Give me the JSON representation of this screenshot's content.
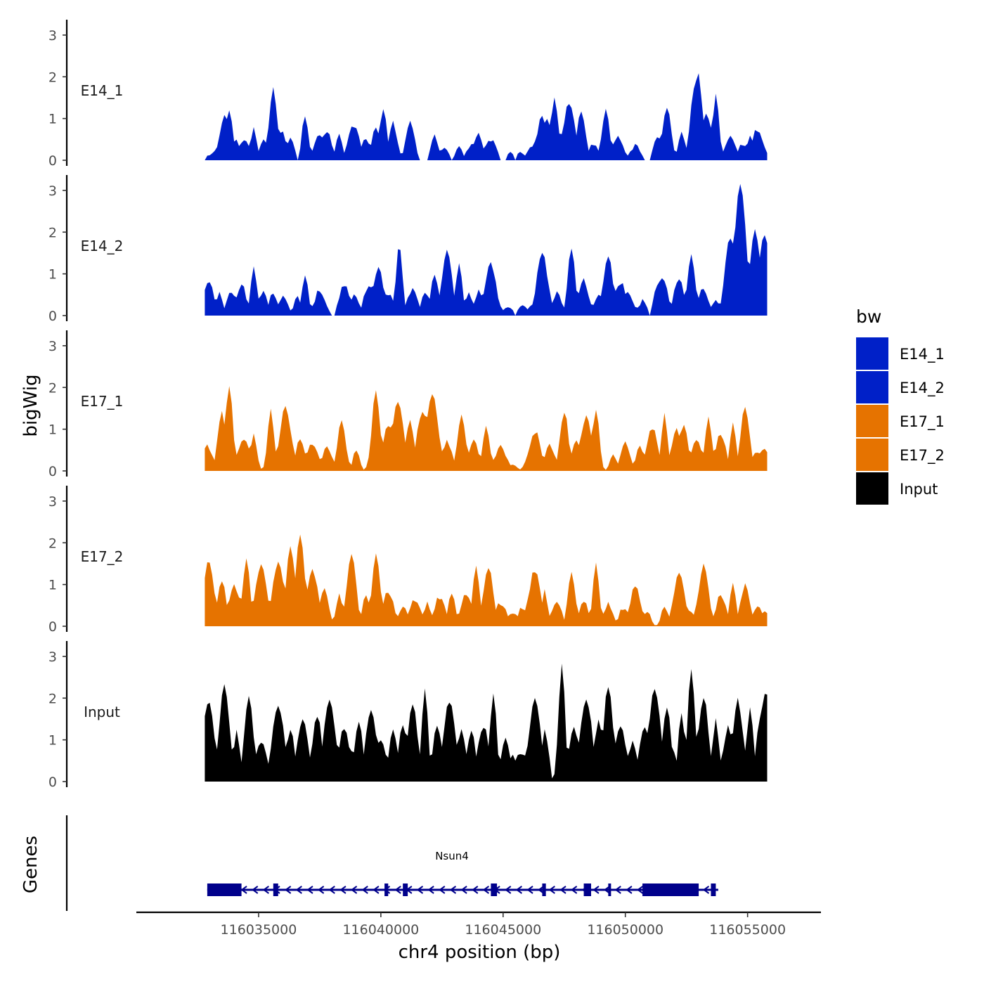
{
  "chart_data": {
    "type": "area",
    "chromosome": "chr4",
    "xlabel": "chr4 position (bp)",
    "ylabel": "bigWig",
    "genes_axis_label": "Genes",
    "xlim": [
      116030000,
      116058000
    ],
    "x_ticks": [
      116035000,
      116040000,
      116045000,
      116050000,
      116055000
    ],
    "x_tick_labels": [
      "116035000",
      "116040000",
      "116045000",
      "116050000",
      "116055000"
    ],
    "ylim": [
      0,
      3.2
    ],
    "y_ticks": [
      0,
      1,
      2,
      3
    ],
    "y_tick_labels": [
      "0",
      "1",
      "2",
      "3"
    ],
    "data_x_range": [
      116032800,
      116055800
    ],
    "bin_width_bp": 100,
    "legend": {
      "title": "bw",
      "position": "right",
      "entries": [
        {
          "name": "E14_1",
          "color": "#0020c8"
        },
        {
          "name": "E14_2",
          "color": "#0020c8"
        },
        {
          "name": "E17_1",
          "color": "#e67300"
        },
        {
          "name": "E17_2",
          "color": "#e67300"
        },
        {
          "name": "Input",
          "color": "#000000"
        }
      ]
    },
    "series": [
      {
        "name": "E14_1",
        "color": "#0020c8",
        "peaks": [
          [
            116033000,
            0.12
          ],
          [
            116033300,
            0.25
          ],
          [
            116033600,
            1.05
          ],
          [
            116033800,
            1.2
          ],
          [
            116034100,
            0.45
          ],
          [
            116034400,
            0.5
          ],
          [
            116034800,
            0.75
          ],
          [
            116035200,
            0.55
          ],
          [
            116035600,
            1.7
          ],
          [
            116035950,
            0.75
          ],
          [
            116036300,
            0.5
          ],
          [
            116036900,
            1.05
          ],
          [
            116037500,
            0.6
          ],
          [
            116037800,
            0.65
          ],
          [
            116038300,
            0.6
          ],
          [
            116038900,
            0.85
          ],
          [
            116039400,
            0.55
          ],
          [
            116039800,
            0.8
          ],
          [
            116040100,
            1.2
          ],
          [
            116040500,
            0.9
          ],
          [
            116041200,
            0.95
          ],
          [
            116042200,
            0.6
          ],
          [
            116042600,
            0.3
          ],
          [
            116043200,
            0.35
          ],
          [
            116043700,
            0.4
          ],
          [
            116044000,
            0.6
          ],
          [
            116044500,
            0.5
          ],
          [
            116045300,
            0.2
          ],
          [
            116045700,
            0.2
          ],
          [
            116046200,
            0.35
          ],
          [
            116046600,
            1.05
          ],
          [
            116046800,
            1.0
          ],
          [
            116047100,
            1.5
          ],
          [
            116047700,
            1.35
          ],
          [
            116048200,
            1.2
          ],
          [
            116048700,
            0.35
          ],
          [
            116049200,
            1.25
          ],
          [
            116049700,
            0.6
          ],
          [
            116050400,
            0.35
          ],
          [
            116051300,
            0.6
          ],
          [
            116051700,
            1.3
          ],
          [
            116052300,
            0.7
          ],
          [
            116052900,
            1.95
          ],
          [
            116053000,
            2.05
          ],
          [
            116053300,
            1.1
          ],
          [
            116053700,
            1.55
          ],
          [
            116054300,
            0.55
          ],
          [
            116054800,
            0.4
          ],
          [
            116055100,
            0.55
          ],
          [
            116055400,
            0.75
          ]
        ]
      },
      {
        "name": "E14_2",
        "color": "#0020c8",
        "peaks": [
          [
            116032950,
            0.8
          ],
          [
            116033400,
            0.6
          ],
          [
            116033900,
            0.6
          ],
          [
            116034300,
            0.75
          ],
          [
            116034800,
            1.2
          ],
          [
            116035200,
            0.55
          ],
          [
            116035600,
            0.55
          ],
          [
            116036000,
            0.5
          ],
          [
            116036600,
            0.45
          ],
          [
            116036900,
            0.95
          ],
          [
            116037500,
            0.6
          ],
          [
            116038500,
            0.75
          ],
          [
            116038900,
            0.45
          ],
          [
            116039500,
            0.75
          ],
          [
            116039900,
            1.15
          ],
          [
            116040300,
            0.5
          ],
          [
            116040750,
            1.7
          ],
          [
            116041300,
            0.65
          ],
          [
            116041800,
            0.6
          ],
          [
            116042200,
            1.0
          ],
          [
            116042700,
            1.55
          ],
          [
            116043200,
            1.3
          ],
          [
            116043600,
            0.55
          ],
          [
            116044000,
            0.6
          ],
          [
            116044500,
            1.25
          ],
          [
            116045200,
            0.2
          ],
          [
            116045800,
            0.25
          ],
          [
            116046200,
            0.25
          ],
          [
            116046600,
            1.5
          ],
          [
            116047200,
            0.55
          ],
          [
            116047800,
            1.65
          ],
          [
            116048300,
            0.85
          ],
          [
            116048900,
            0.55
          ],
          [
            116049300,
            1.45
          ],
          [
            116049800,
            0.8
          ],
          [
            116050100,
            0.55
          ],
          [
            116050700,
            0.35
          ],
          [
            116051300,
            0.7
          ],
          [
            116051500,
            0.95
          ],
          [
            116052200,
            0.85
          ],
          [
            116052700,
            1.5
          ],
          [
            116053200,
            0.65
          ],
          [
            116053700,
            0.4
          ],
          [
            116054300,
            1.9
          ],
          [
            116054700,
            3.1
          ],
          [
            116055000,
            1.35
          ],
          [
            116055300,
            2.1
          ],
          [
            116055600,
            1.6
          ],
          [
            116055700,
            1.95
          ]
        ]
      },
      {
        "name": "E17_1",
        "color": "#e67300",
        "peaks": [
          [
            116032900,
            0.6
          ],
          [
            116033500,
            1.4
          ],
          [
            116033800,
            2.05
          ],
          [
            116034400,
            0.75
          ],
          [
            116034800,
            0.85
          ],
          [
            116035500,
            1.45
          ],
          [
            116036100,
            1.55
          ],
          [
            116036700,
            0.75
          ],
          [
            116037200,
            0.65
          ],
          [
            116037800,
            0.55
          ],
          [
            116038400,
            1.2
          ],
          [
            116039000,
            0.5
          ],
          [
            116039800,
            1.9
          ],
          [
            116040300,
            1.1
          ],
          [
            116040700,
            1.65
          ],
          [
            116041200,
            1.2
          ],
          [
            116041700,
            1.45
          ],
          [
            116042100,
            1.85
          ],
          [
            116042700,
            0.7
          ],
          [
            116043300,
            1.35
          ],
          [
            116043800,
            0.7
          ],
          [
            116044300,
            1.05
          ],
          [
            116044900,
            0.6
          ],
          [
            116045400,
            0.15
          ],
          [
            116046300,
            0.95
          ],
          [
            116046900,
            0.6
          ],
          [
            116047500,
            1.45
          ],
          [
            116048000,
            0.7
          ],
          [
            116048400,
            1.3
          ],
          [
            116048800,
            1.5
          ],
          [
            116049500,
            0.4
          ],
          [
            116050000,
            0.7
          ],
          [
            116050600,
            0.65
          ],
          [
            116051100,
            1.05
          ],
          [
            116051600,
            1.35
          ],
          [
            116052100,
            1.0
          ],
          [
            116052400,
            1.1
          ],
          [
            116052900,
            0.75
          ],
          [
            116053400,
            1.25
          ],
          [
            116053900,
            0.9
          ],
          [
            116054400,
            1.15
          ],
          [
            116054900,
            1.55
          ],
          [
            116055400,
            0.45
          ],
          [
            116055700,
            0.5
          ]
        ]
      },
      {
        "name": "E17_2",
        "color": "#e67300",
        "peaks": [
          [
            116032950,
            1.55
          ],
          [
            116033500,
            1.1
          ],
          [
            116034000,
            1.0
          ],
          [
            116034500,
            1.6
          ],
          [
            116035100,
            1.45
          ],
          [
            116035800,
            1.5
          ],
          [
            116036300,
            1.95
          ],
          [
            116036700,
            2.15
          ],
          [
            116037200,
            1.35
          ],
          [
            116037700,
            0.9
          ],
          [
            116038300,
            0.8
          ],
          [
            116038800,
            1.75
          ],
          [
            116039400,
            0.75
          ],
          [
            116039800,
            1.7
          ],
          [
            116040300,
            0.85
          ],
          [
            116040900,
            0.45
          ],
          [
            116041400,
            0.65
          ],
          [
            116041900,
            0.55
          ],
          [
            116042400,
            0.7
          ],
          [
            116042900,
            0.75
          ],
          [
            116043500,
            0.75
          ],
          [
            116043900,
            1.5
          ],
          [
            116044400,
            1.45
          ],
          [
            116044900,
            0.55
          ],
          [
            116045400,
            0.35
          ],
          [
            116045800,
            0.45
          ],
          [
            116046300,
            1.35
          ],
          [
            116046700,
            0.85
          ],
          [
            116047200,
            0.6
          ],
          [
            116047800,
            1.3
          ],
          [
            116048300,
            0.6
          ],
          [
            116048800,
            1.5
          ],
          [
            116049300,
            0.55
          ],
          [
            116049900,
            0.45
          ],
          [
            116050400,
            1.0
          ],
          [
            116050900,
            0.4
          ],
          [
            116051600,
            0.45
          ],
          [
            116052200,
            1.3
          ],
          [
            116052600,
            0.4
          ],
          [
            116053200,
            1.45
          ],
          [
            116053900,
            0.75
          ],
          [
            116054400,
            1.0
          ],
          [
            116054900,
            1.0
          ],
          [
            116055400,
            0.45
          ],
          [
            116055700,
            0.35
          ]
        ]
      },
      {
        "name": "Input",
        "color": "#000000",
        "peaks": [
          [
            116032950,
            1.95
          ],
          [
            116033600,
            2.3
          ],
          [
            116034100,
            1.2
          ],
          [
            116034600,
            2.05
          ],
          [
            116035100,
            0.95
          ],
          [
            116035800,
            1.85
          ],
          [
            116036300,
            1.25
          ],
          [
            116036800,
            1.5
          ],
          [
            116037400,
            1.6
          ],
          [
            116037900,
            1.95
          ],
          [
            116038500,
            1.3
          ],
          [
            116039100,
            1.45
          ],
          [
            116039600,
            1.7
          ],
          [
            116040000,
            1.0
          ],
          [
            116040500,
            1.3
          ],
          [
            116040900,
            1.35
          ],
          [
            116041300,
            1.9
          ],
          [
            116041800,
            2.2
          ],
          [
            116042300,
            1.3
          ],
          [
            116042800,
            1.95
          ],
          [
            116043300,
            1.2
          ],
          [
            116043700,
            1.2
          ],
          [
            116044200,
            1.3
          ],
          [
            116044600,
            2.15
          ],
          [
            116045100,
            1.0
          ],
          [
            116045400,
            0.6
          ],
          [
            116045900,
            0.6
          ],
          [
            116046300,
            1.95
          ],
          [
            116046700,
            1.25
          ],
          [
            116047400,
            2.85
          ],
          [
            116047900,
            1.35
          ],
          [
            116048400,
            2.0
          ],
          [
            116048900,
            1.45
          ],
          [
            116049300,
            2.3
          ],
          [
            116049800,
            1.3
          ],
          [
            116050300,
            1.0
          ],
          [
            116050800,
            1.3
          ],
          [
            116051200,
            2.2
          ],
          [
            116051700,
            1.8
          ],
          [
            116052300,
            1.7
          ],
          [
            116052700,
            2.7
          ],
          [
            116053200,
            2.05
          ],
          [
            116053700,
            1.5
          ],
          [
            116054200,
            1.3
          ],
          [
            116054600,
            1.95
          ],
          [
            116055100,
            1.8
          ],
          [
            116055500,
            1.45
          ],
          [
            116055750,
            2.15
          ]
        ]
      }
    ],
    "gene": {
      "name": "Nsun4",
      "strand": "-",
      "start": 116032900,
      "end": 116053800,
      "color": "#00008b",
      "exons": [
        [
          116032900,
          116034300
        ],
        [
          116035600,
          116035800
        ],
        [
          116040150,
          116040300
        ],
        [
          116040900,
          116041100
        ],
        [
          116044500,
          116044750
        ],
        [
          116046600,
          116046750
        ],
        [
          116048300,
          116048600
        ],
        [
          116049300,
          116049400
        ],
        [
          116050700,
          116053000
        ],
        [
          116053500,
          116053700
        ]
      ]
    }
  }
}
